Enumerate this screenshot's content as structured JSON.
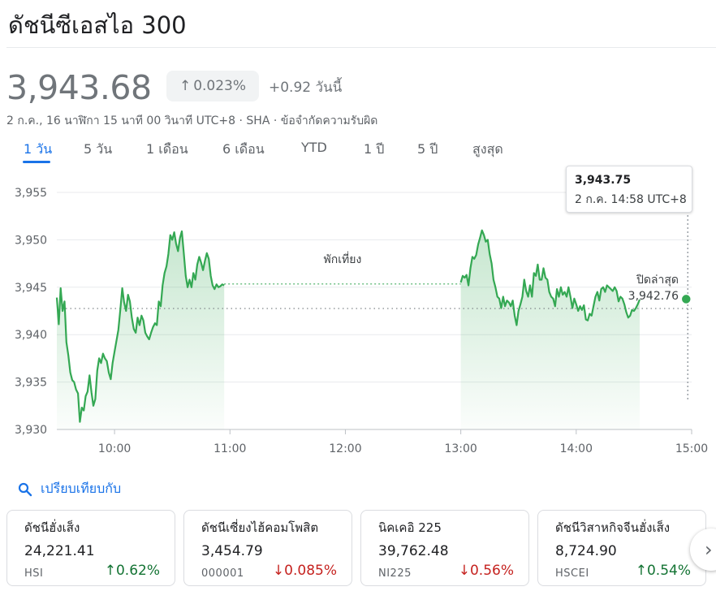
{
  "header": {
    "title": "ดัชนีซีเอสไอ 300",
    "price": "3,943.68",
    "percent_change": "0.023%",
    "change_text": "+0.92 วันนี้",
    "subline": "2 ก.ค., 16 นาฬิกา 15 นาที 00 วินาที UTC+8 · SHA · ข้อจำกัดความรับผิด"
  },
  "tabs": [
    "1 วัน",
    "5 วัน",
    "1 เดือน",
    "6 เดือน",
    "YTD",
    "1 ปี",
    "5 ปี",
    "สูงสุด"
  ],
  "active_tab": "1 วัน",
  "colors": {
    "accent": "#1a73e8",
    "line": "#34a853",
    "up": "#137333",
    "down": "#c5221f"
  },
  "chart_data": {
    "type": "area",
    "y_ticks": [
      "3,955",
      "3,950",
      "3,945",
      "3,940",
      "3,935",
      "3,930"
    ],
    "y_tick_values": [
      3955,
      3950,
      3945,
      3940,
      3935,
      3930
    ],
    "x_ticks": [
      "10:00",
      "11:00",
      "12:00",
      "13:00",
      "14:00",
      "15:00"
    ],
    "x_tick_minutes": [
      600,
      660,
      720,
      780,
      840,
      900
    ],
    "ylim": [
      3930,
      3955
    ],
    "xlim": [
      570,
      900
    ],
    "previous_close_label": "ปิดล่าสุด",
    "previous_close": "3,942.76",
    "previous_close_value": 3942.76,
    "lunch_label": "พักเที่ยง",
    "lunch_break": [
      690,
      780
    ],
    "series": [
      {
        "morning": [
          [
            570,
            3943.9
          ],
          [
            571,
            3941.1
          ],
          [
            572,
            3944.9
          ],
          [
            573,
            3942.5
          ],
          [
            574,
            3943.5
          ],
          [
            575,
            3939.2
          ],
          [
            576,
            3937.8
          ],
          [
            577,
            3936.0
          ],
          [
            578,
            3935.2
          ],
          [
            579,
            3935.0
          ],
          [
            580,
            3934.2
          ],
          [
            581,
            3933.8
          ],
          [
            582,
            3930.8
          ],
          [
            583,
            3932.3
          ],
          [
            584,
            3932.0
          ],
          [
            585,
            3933.5
          ],
          [
            586,
            3934.0
          ],
          [
            587,
            3935.7
          ],
          [
            588,
            3933.9
          ],
          [
            589,
            3932.5
          ],
          [
            590,
            3933.2
          ],
          [
            591,
            3936.2
          ],
          [
            592,
            3937.5
          ],
          [
            593,
            3937.0
          ],
          [
            594,
            3938.0
          ],
          [
            595,
            3937.5
          ],
          [
            596,
            3937.2
          ],
          [
            597,
            3936.0
          ],
          [
            598,
            3935.3
          ],
          [
            599,
            3937.0
          ],
          [
            600,
            3938.2
          ],
          [
            602,
            3940.5
          ],
          [
            603,
            3942.6
          ],
          [
            604,
            3944.9
          ],
          [
            605,
            3943.4
          ],
          [
            606,
            3942.5
          ],
          [
            607,
            3944.2
          ],
          [
            608,
            3943.5
          ],
          [
            609,
            3941.8
          ],
          [
            610,
            3940.6
          ],
          [
            611,
            3940.2
          ],
          [
            612,
            3941.8
          ],
          [
            613,
            3941.0
          ],
          [
            614,
            3942.0
          ],
          [
            615,
            3941.5
          ],
          [
            616,
            3940.2
          ],
          [
            617,
            3939.8
          ],
          [
            618,
            3939.5
          ],
          [
            619,
            3940.2
          ],
          [
            620,
            3940.8
          ],
          [
            621,
            3941.2
          ],
          [
            622,
            3941.0
          ],
          [
            623,
            3943.5
          ],
          [
            624,
            3943.0
          ],
          [
            625,
            3945.2
          ],
          [
            626,
            3946.5
          ],
          [
            627,
            3947.2
          ],
          [
            628,
            3948.5
          ],
          [
            629,
            3950.5
          ],
          [
            630,
            3950.0
          ],
          [
            631,
            3950.8
          ],
          [
            632,
            3949.6
          ],
          [
            633,
            3948.8
          ],
          [
            634,
            3950.2
          ],
          [
            635,
            3950.9
          ],
          [
            636,
            3948.6
          ],
          [
            637,
            3946.2
          ],
          [
            638,
            3945.0
          ],
          [
            639,
            3945.8
          ],
          [
            640,
            3945.0
          ],
          [
            641,
            3946.5
          ],
          [
            642,
            3945.8
          ],
          [
            643,
            3947.4
          ],
          [
            644,
            3948.2
          ],
          [
            645,
            3947.6
          ],
          [
            646,
            3946.8
          ],
          [
            647,
            3947.8
          ],
          [
            648,
            3948.6
          ],
          [
            649,
            3948.0
          ],
          [
            650,
            3946.2
          ],
          [
            651,
            3945.2
          ],
          [
            652,
            3944.8
          ],
          [
            653,
            3945.3
          ],
          [
            654,
            3945.0
          ],
          [
            655,
            3945.1
          ],
          [
            656,
            3945.3
          ],
          [
            657,
            3945.2
          ]
        ],
        "afternoon": [
          [
            780,
            3945.5
          ],
          [
            781,
            3946.2
          ],
          [
            782,
            3946.0
          ],
          [
            783,
            3946.3
          ],
          [
            784,
            3945.2
          ],
          [
            785,
            3947.0
          ],
          [
            786,
            3948.2
          ],
          [
            787,
            3948.0
          ],
          [
            788,
            3948.4
          ],
          [
            789,
            3949.5
          ],
          [
            790,
            3950.2
          ],
          [
            791,
            3951.0
          ],
          [
            792,
            3950.5
          ],
          [
            793,
            3949.8
          ],
          [
            794,
            3950.0
          ],
          [
            795,
            3948.5
          ],
          [
            796,
            3947.5
          ],
          [
            797,
            3945.8
          ],
          [
            798,
            3945.0
          ],
          [
            799,
            3944.0
          ],
          [
            800,
            3943.8
          ],
          [
            801,
            3942.8
          ],
          [
            802,
            3944.0
          ],
          [
            803,
            3943.0
          ],
          [
            804,
            3943.6
          ],
          [
            805,
            3943.4
          ],
          [
            806,
            3943.0
          ],
          [
            807,
            3943.6
          ],
          [
            808,
            3942.0
          ],
          [
            809,
            3941.0
          ],
          [
            810,
            3942.5
          ],
          [
            811,
            3943.2
          ],
          [
            812,
            3944.0
          ],
          [
            813,
            3945.8
          ],
          [
            814,
            3944.6
          ],
          [
            815,
            3944.0
          ],
          [
            816,
            3945.2
          ],
          [
            817,
            3944.0
          ],
          [
            818,
            3946.5
          ],
          [
            819,
            3946.2
          ],
          [
            820,
            3947.4
          ],
          [
            821,
            3945.8
          ],
          [
            822,
            3945.8
          ],
          [
            823,
            3947.0
          ],
          [
            824,
            3946.0
          ],
          [
            825,
            3945.8
          ],
          [
            826,
            3944.5
          ],
          [
            827,
            3944.0
          ],
          [
            828,
            3943.8
          ],
          [
            829,
            3943.0
          ],
          [
            830,
            3944.8
          ],
          [
            831,
            3944.0
          ],
          [
            832,
            3945.0
          ],
          [
            833,
            3944.2
          ],
          [
            834,
            3944.5
          ],
          [
            835,
            3944.0
          ],
          [
            836,
            3945.0
          ],
          [
            837,
            3944.0
          ],
          [
            838,
            3942.8
          ],
          [
            839,
            3943.8
          ],
          [
            840,
            3943.2
          ],
          [
            841,
            3942.5
          ],
          [
            842,
            3943.0
          ],
          [
            843,
            3942.6
          ],
          [
            844,
            3943.1
          ],
          [
            845,
            3941.6
          ],
          [
            846,
            3941.5
          ],
          [
            847,
            3942.2
          ],
          [
            848,
            3942.0
          ],
          [
            849,
            3943.0
          ],
          [
            850,
            3944.0
          ],
          [
            851,
            3944.5
          ],
          [
            852,
            3943.6
          ],
          [
            853,
            3944.8
          ],
          [
            854,
            3945.0
          ],
          [
            855,
            3944.5
          ],
          [
            856,
            3945.2
          ],
          [
            857,
            3945.0
          ],
          [
            858,
            3944.8
          ],
          [
            859,
            3944.6
          ],
          [
            860,
            3945.0
          ],
          [
            861,
            3944.6
          ],
          [
            862,
            3943.5
          ],
          [
            863,
            3944.0
          ],
          [
            864,
            3943.8
          ],
          [
            865,
            3943.2
          ],
          [
            866,
            3942.4
          ],
          [
            867,
            3941.8
          ],
          [
            868,
            3942.0
          ],
          [
            869,
            3942.6
          ],
          [
            870,
            3942.5
          ],
          [
            871,
            3942.8
          ],
          [
            872,
            3943.2
          ],
          [
            873,
            3943.7
          ]
        ]
      }
    ]
  },
  "tooltip": {
    "value": "3,943.75",
    "time": "2 ก.ค. 14:58 UTC+8",
    "value_num": 3943.75,
    "minute": 898
  },
  "compare": {
    "label": "เปรียบเทียบกับ"
  },
  "cards": [
    {
      "name": "ดัชนีฮั่งเส็ง",
      "value": "24,221.41",
      "symbol": "HSI",
      "pct": "0.62%",
      "dir": "up"
    },
    {
      "name": "ดัชนีเซี่ยงไฮ้คอมโพสิต",
      "value": "3,454.79",
      "symbol": "000001",
      "pct": "0.085%",
      "dir": "down"
    },
    {
      "name": "นิคเคอิ 225",
      "value": "39,762.48",
      "symbol": "NI225",
      "pct": "0.56%",
      "dir": "down"
    },
    {
      "name": "ดัชนีวิสาหกิจจีนฮั่งเส็ง",
      "value": "8,724.90",
      "symbol": "HSCEI",
      "pct": "0.54%",
      "dir": "up"
    }
  ]
}
